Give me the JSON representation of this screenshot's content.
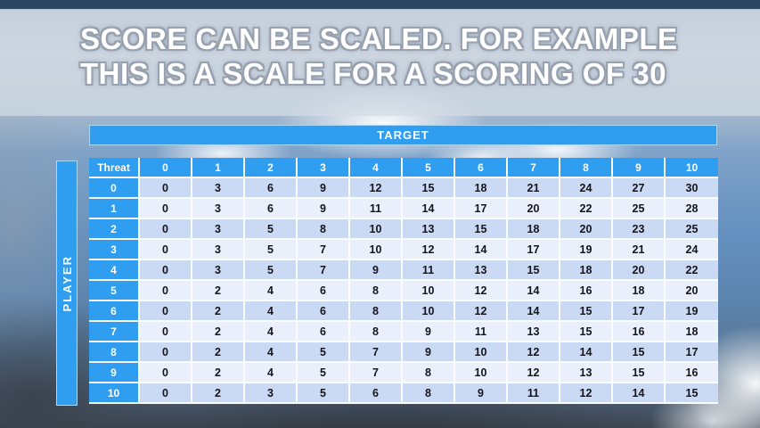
{
  "title": {
    "line1": "SCORE CAN BE SCALED. FOR EXAMPLE",
    "line2": "THIS IS A SCALE FOR A SCORING OF 30"
  },
  "matrix": {
    "target_label": "TARGET",
    "player_label": "PLAYER",
    "corner_label": "Threat",
    "columns": [
      "0",
      "1",
      "2",
      "3",
      "4",
      "5",
      "6",
      "7",
      "8",
      "9",
      "10"
    ],
    "rows": [
      {
        "label": "0",
        "values": [
          0,
          3,
          6,
          9,
          12,
          15,
          18,
          21,
          24,
          27,
          30
        ]
      },
      {
        "label": "1",
        "values": [
          0,
          3,
          6,
          9,
          11,
          14,
          17,
          20,
          22,
          25,
          28
        ]
      },
      {
        "label": "2",
        "values": [
          0,
          3,
          5,
          8,
          10,
          13,
          15,
          18,
          20,
          23,
          25
        ]
      },
      {
        "label": "3",
        "values": [
          0,
          3,
          5,
          7,
          10,
          12,
          14,
          17,
          19,
          21,
          24
        ]
      },
      {
        "label": "4",
        "values": [
          0,
          3,
          5,
          7,
          9,
          11,
          13,
          15,
          18,
          20,
          22
        ]
      },
      {
        "label": "5",
        "values": [
          0,
          2,
          4,
          6,
          8,
          10,
          12,
          14,
          16,
          18,
          20
        ]
      },
      {
        "label": "6",
        "values": [
          0,
          2,
          4,
          6,
          8,
          10,
          12,
          14,
          15,
          17,
          19
        ]
      },
      {
        "label": "7",
        "values": [
          0,
          2,
          4,
          6,
          8,
          9,
          11,
          13,
          15,
          16,
          18
        ]
      },
      {
        "label": "8",
        "values": [
          0,
          2,
          4,
          5,
          7,
          9,
          10,
          12,
          14,
          15,
          17
        ]
      },
      {
        "label": "9",
        "values": [
          0,
          2,
          4,
          5,
          7,
          8,
          10,
          12,
          13,
          15,
          16
        ]
      },
      {
        "label": "10",
        "values": [
          0,
          2,
          3,
          5,
          6,
          8,
          9,
          11,
          12,
          14,
          15
        ]
      }
    ]
  },
  "chart_data": {
    "type": "table",
    "title": "Scale for a scoring of 30",
    "col_axis_label": "TARGET",
    "row_axis_label": "PLAYER (Threat)",
    "columns": [
      0,
      1,
      2,
      3,
      4,
      5,
      6,
      7,
      8,
      9,
      10
    ],
    "row_labels": [
      0,
      1,
      2,
      3,
      4,
      5,
      6,
      7,
      8,
      9,
      10
    ],
    "values": [
      [
        0,
        3,
        6,
        9,
        12,
        15,
        18,
        21,
        24,
        27,
        30
      ],
      [
        0,
        3,
        6,
        9,
        11,
        14,
        17,
        20,
        22,
        25,
        28
      ],
      [
        0,
        3,
        5,
        8,
        10,
        13,
        15,
        18,
        20,
        23,
        25
      ],
      [
        0,
        3,
        5,
        7,
        10,
        12,
        14,
        17,
        19,
        21,
        24
      ],
      [
        0,
        3,
        5,
        7,
        9,
        11,
        13,
        15,
        18,
        20,
        22
      ],
      [
        0,
        2,
        4,
        6,
        8,
        10,
        12,
        14,
        16,
        18,
        20
      ],
      [
        0,
        2,
        4,
        6,
        8,
        10,
        12,
        14,
        15,
        17,
        19
      ],
      [
        0,
        2,
        4,
        6,
        8,
        9,
        11,
        13,
        15,
        16,
        18
      ],
      [
        0,
        2,
        4,
        5,
        7,
        9,
        10,
        12,
        14,
        15,
        17
      ],
      [
        0,
        2,
        4,
        5,
        7,
        8,
        10,
        12,
        13,
        15,
        16
      ],
      [
        0,
        2,
        3,
        5,
        6,
        8,
        9,
        11,
        12,
        14,
        15
      ]
    ]
  },
  "colors": {
    "accent_blue": "#2F9EF0",
    "banner_border": "#A6D9FA",
    "row_band_dark": "#CBDAF4",
    "row_band_light": "#E9F0FB",
    "grid_line": "#FAFCFE",
    "header_text": "#FFFFFF",
    "cell_text": "#14141C",
    "title_text": "#FFFFFF",
    "title_outline": "#97A1B0",
    "title_band": "#D4DCE6",
    "sky_top_bar": "#2A4562"
  }
}
